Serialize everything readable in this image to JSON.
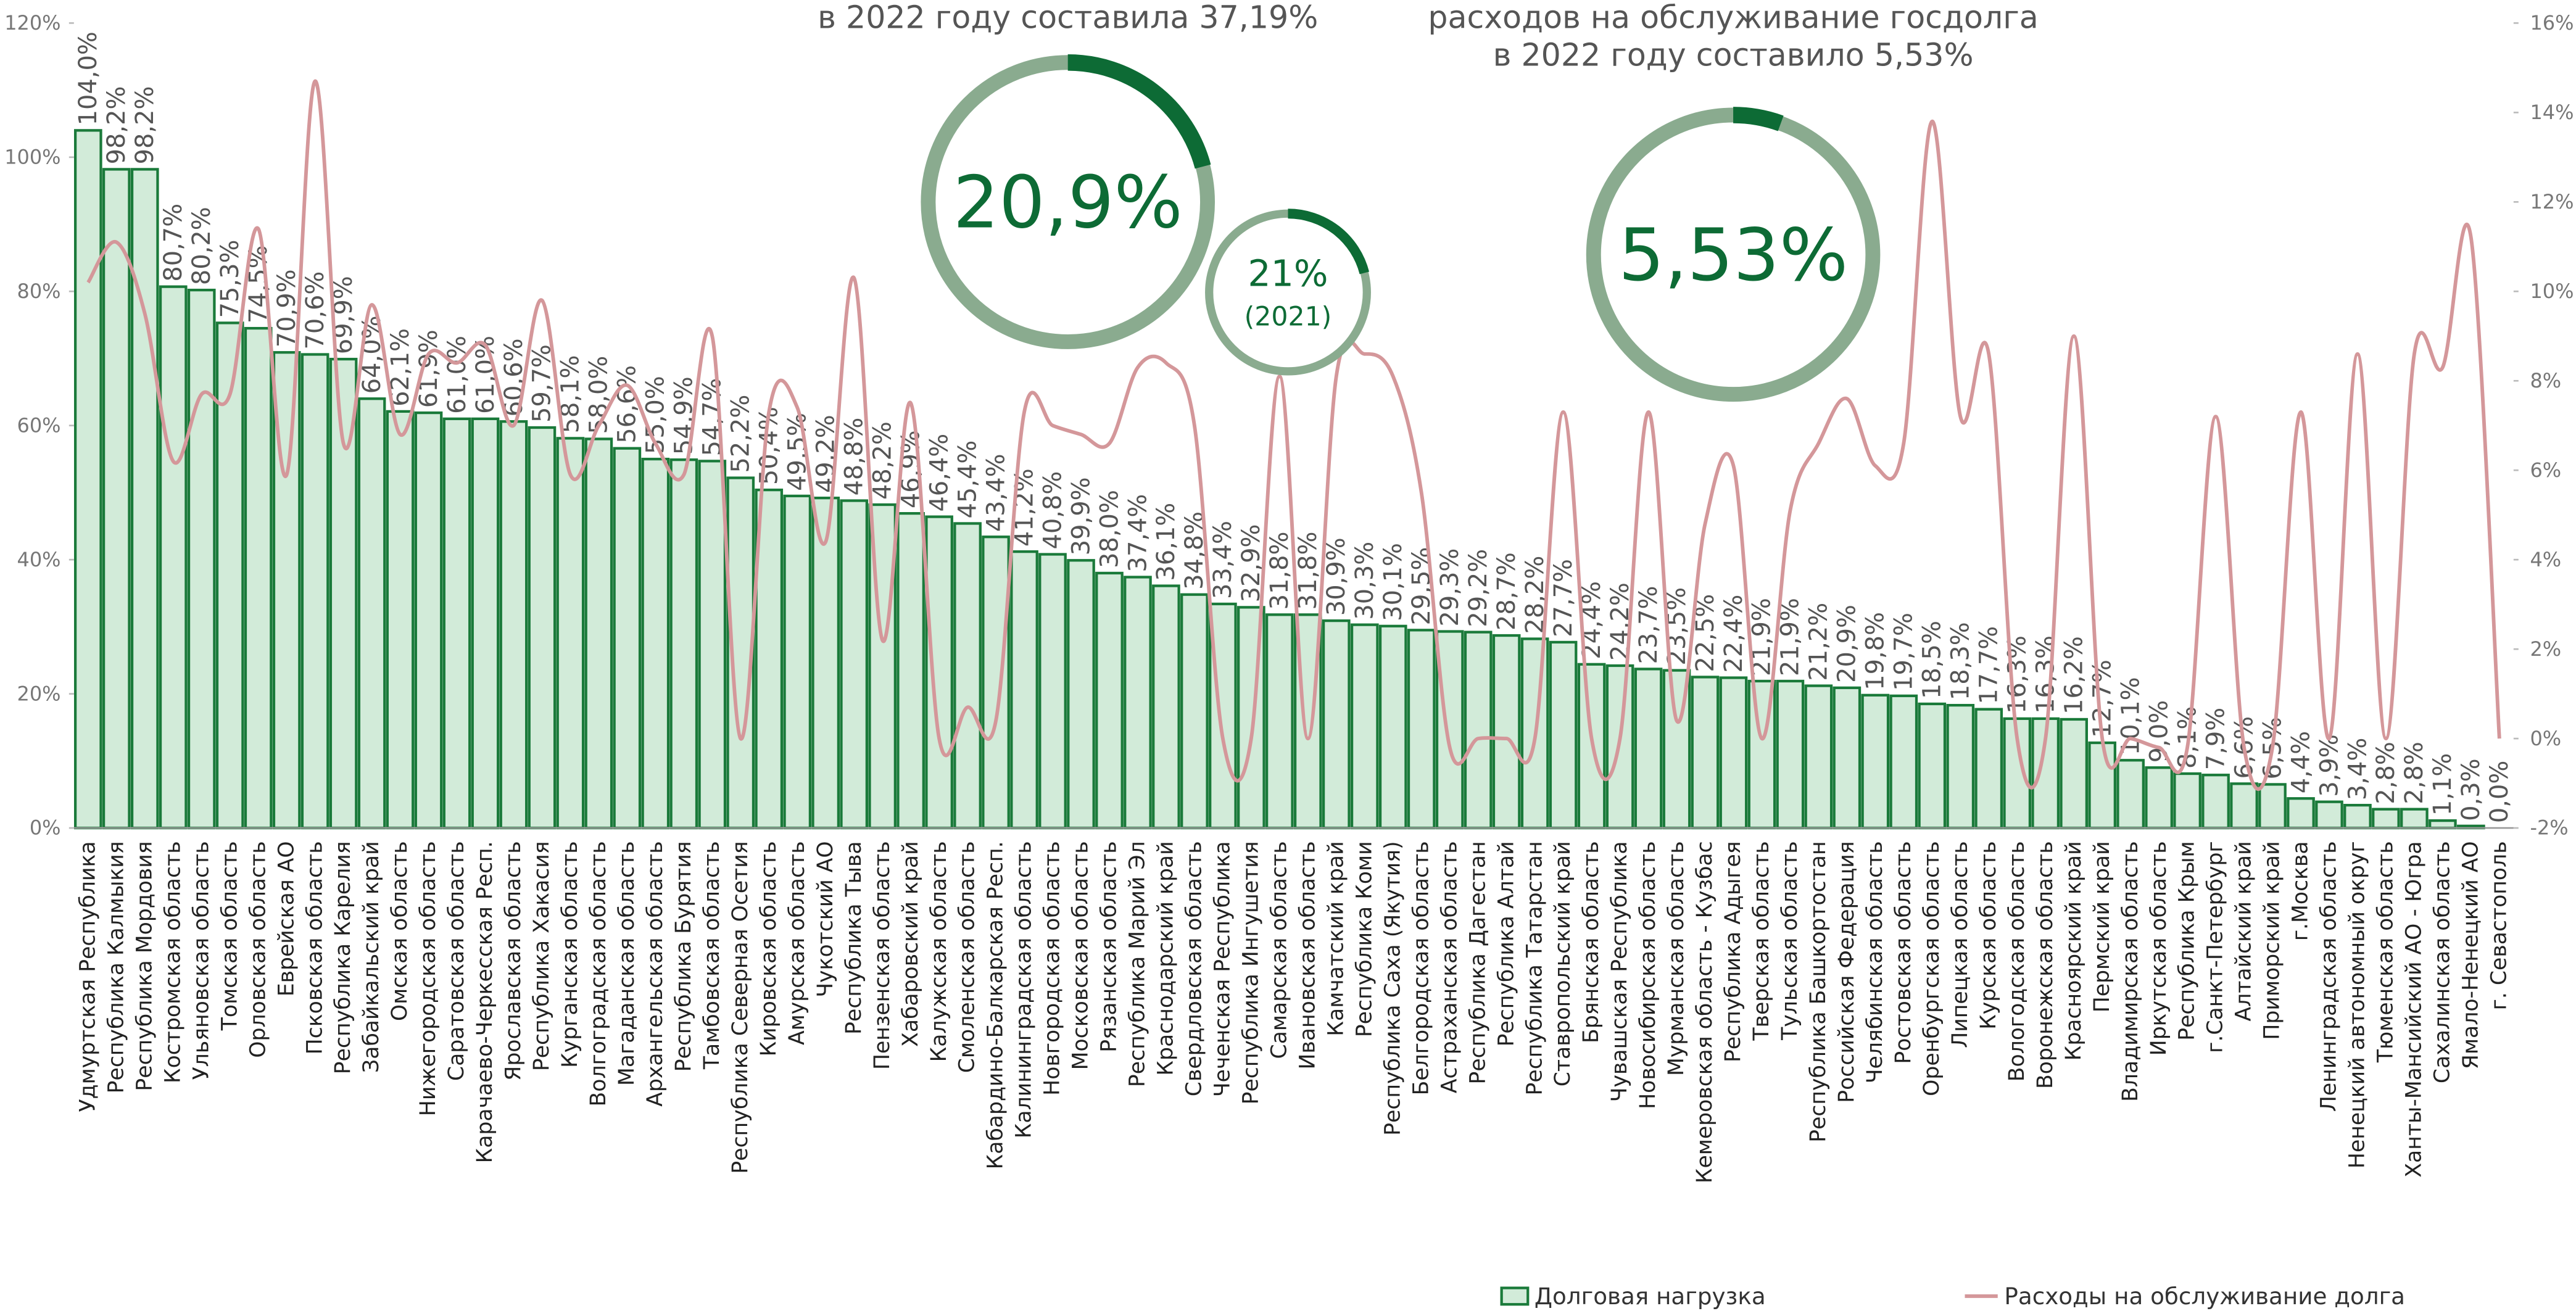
{
  "chart_data": {
    "type": "bar",
    "annotations": [
      "в 2022 году составила 37,19%",
      "расходов на обслуживание госдолга",
      "в 2022 году составило 5,53%"
    ],
    "donuts": [
      {
        "value": 20.9,
        "label": "20,9%"
      },
      {
        "value": 21,
        "label": "21%",
        "note": "(2021)"
      },
      {
        "value": 5.53,
        "label": "5,53%"
      }
    ],
    "categories": [
      "Удмуртская Республика",
      "Республика Калмыкия",
      "Республика Мордовия",
      "Костромская область",
      "Ульяновская область",
      "Томская область",
      "Орловская область",
      "Еврейская АО",
      "Псковская область",
      "Республика Карелия",
      "Забайкальский край",
      "Омская область",
      "Нижегородская область",
      "Саратовская область",
      "Карачаево-Черкесская Респ.",
      "Ярославская область",
      "Республика Хакасия",
      "Курганская область",
      "Волгоградская область",
      "Магаданская область",
      "Архангельская область",
      "Республика Бурятия",
      "Тамбовская область",
      "Республика Северная Осетия",
      "Кировская область",
      "Амурская область",
      "Чукотский АО",
      "Республика Тыва",
      "Пензенская область",
      "Хабаровский край",
      "Калужская область",
      "Смоленская область",
      "Кабардино-Балкарская Респ.",
      "Калининградская область",
      "Новгородская область",
      "Московская область",
      "Рязанская область",
      "Республика Марий Эл",
      "Краснодарский край",
      "Свердловская область",
      "Чеченская Республика",
      "Республика Ингушетия",
      "Самарская область",
      "Ивановская область",
      "Камчатский край",
      "Республика Коми",
      "Республика Саха (Якутия)",
      "Белгородская область",
      "Астраханская область",
      "Республика Дагестан",
      "Республика Алтай",
      "Республика Татарстан",
      "Ставропольский край",
      "Брянская область",
      "Чувашская Республика",
      "Новосибирская область",
      "Мурманская область",
      "Кемеровская область - Кузбас",
      "Республика Адыгея",
      "Тверская область",
      "Тульская область",
      "Республика Башкортостан",
      "Российская Федерация",
      "Челябинская область",
      "Ростовская область",
      "Оренбургская область",
      "Липецкая область",
      "Курская область",
      "Вологодская область",
      "Воронежская область",
      "Красноярский край",
      "Пермский край",
      "Владимирская область",
      "Иркутская область",
      "Республика Крым",
      "г.Санкт-Петербург",
      "Алтайский край",
      "Приморский край",
      "г.Москва",
      "Ленинградская область",
      "Ненецкий автономный округ",
      "Тюменская область",
      "Ханты-Мансийский АО - Югра",
      "Сахалинская область",
      "Ямало-Ненецкий АО",
      "г. Севастополь"
    ],
    "series": [
      {
        "name": "Долговая нагрузка",
        "type": "bar",
        "color": "#d2ebd9",
        "stroke": "#1a7a3a",
        "values": [
          104.0,
          98.2,
          98.2,
          80.7,
          80.2,
          75.3,
          74.5,
          70.9,
          70.6,
          69.9,
          64.0,
          62.1,
          61.9,
          61.0,
          61.0,
          60.6,
          59.7,
          58.1,
          58.0,
          56.6,
          55.0,
          54.9,
          54.7,
          52.2,
          50.4,
          49.5,
          49.2,
          48.8,
          48.2,
          46.9,
          46.4,
          45.4,
          43.4,
          41.2,
          40.8,
          39.9,
          38.0,
          37.4,
          36.1,
          34.8,
          33.4,
          32.9,
          31.8,
          31.8,
          30.9,
          30.3,
          30.1,
          29.5,
          29.3,
          29.2,
          28.7,
          28.2,
          27.7,
          24.4,
          24.2,
          23.7,
          23.5,
          22.5,
          22.4,
          21.9,
          21.9,
          21.2,
          20.9,
          19.8,
          19.7,
          18.5,
          18.3,
          17.7,
          16.3,
          16.3,
          16.2,
          12.7,
          10.1,
          9.0,
          8.1,
          7.9,
          6.6,
          6.5,
          4.4,
          3.9,
          3.4,
          2.8,
          2.8,
          1.1,
          0.3,
          0.0
        ],
        "value_labels": [
          "104,0%",
          "98,2%",
          "98,2%",
          "80,7%",
          "80,2%",
          "75,3%",
          "74,5%",
          "70,9%",
          "70,6%",
          "69,9%",
          "64,0%",
          "62,1%",
          "61,9%",
          "61,0%",
          "61,0%",
          "60,6%",
          "59,7%",
          "58,1%",
          "58,0%",
          "56,6%",
          "55,0%",
          "54,9%",
          "54,7%",
          "52,2%",
          "50,4%",
          "49,5%",
          "49,2%",
          "48,8%",
          "48,2%",
          "46,9%",
          "46,4%",
          "45,4%",
          "43,4%",
          "41,2%",
          "40,8%",
          "39,9%",
          "38,0%",
          "37,4%",
          "36,1%",
          "34,8%",
          "33,4%",
          "32,9%",
          "31,8%",
          "31,8%",
          "30,9%",
          "30,3%",
          "30,1%",
          "29,5%",
          "29,3%",
          "29,2%",
          "28,7%",
          "28,2%",
          "27,7%",
          "24,4%",
          "24,2%",
          "23,7%",
          "23,5%",
          "22,5%",
          "22,4%",
          "21,9%",
          "21,9%",
          "21,2%",
          "20,9%",
          "19,8%",
          "19,7%",
          "18,5%",
          "18,3%",
          "17,7%",
          "16,3%",
          "16,3%",
          "16,2%",
          "12,7%",
          "10,1%",
          "9,0%",
          "8,1%",
          "7,9%",
          "6,6%",
          "6,5%",
          "4,4%",
          "3,9%",
          "3,4%",
          "2,8%",
          "2,8%",
          "1,1%",
          "0,3%",
          "0,0%"
        ]
      },
      {
        "name": "Расходы на обслуживание долга",
        "type": "line",
        "axis": "y2",
        "color": "#d4979a",
        "values": [
          10.2,
          11.1,
          9.5,
          6.2,
          7.7,
          7.7,
          11.4,
          5.9,
          14.7,
          6.6,
          9.7,
          6.8,
          8.6,
          8.4,
          8.8,
          7.0,
          9.8,
          5.9,
          7.0,
          7.9,
          6.6,
          5.9,
          9.0,
          0.0,
          7.3,
          7.4,
          4.4,
          10.3,
          2.2,
          7.5,
          0.0,
          0.7,
          0.4,
          7.3,
          7.0,
          6.8,
          6.6,
          8.3,
          8.4,
          7.0,
          0.0,
          0.0,
          8.1,
          0.0,
          8.1,
          8.6,
          8.1,
          5.5,
          -0.2,
          0.0,
          0.0,
          0.0,
          7.3,
          0.0,
          0.0,
          7.3,
          0.4,
          4.8,
          6.1,
          0.0,
          5.1,
          6.6,
          7.6,
          6.1,
          6.6,
          13.8,
          7.2,
          8.6,
          0.0,
          0.0,
          9.0,
          0.0,
          0.0,
          -0.2,
          -0.2,
          7.2,
          -0.2,
          -0.2,
          7.3,
          0.0,
          8.6,
          0.0,
          8.6,
          8.3,
          11.2,
          0.0
        ]
      }
    ],
    "ylim": [
      0,
      120
    ],
    "yticks": [
      {
        "value": 0,
        "label": "0%"
      },
      {
        "value": 20,
        "label": "20%"
      },
      {
        "value": 40,
        "label": "40%"
      },
      {
        "value": 60,
        "label": "60%"
      },
      {
        "value": 80,
        "label": "80%"
      },
      {
        "value": 100,
        "label": "100%"
      },
      {
        "value": 120,
        "label": "120%"
      }
    ],
    "y2lim": [
      -2,
      16
    ],
    "y2ticks": [
      {
        "value": -2,
        "label": "-2%"
      },
      {
        "value": 0,
        "label": "0%"
      },
      {
        "value": 2,
        "label": "2%"
      },
      {
        "value": 4,
        "label": "4%"
      },
      {
        "value": 6,
        "label": "6%"
      },
      {
        "value": 8,
        "label": "8%"
      },
      {
        "value": 10,
        "label": "10%"
      },
      {
        "value": 12,
        "label": "12%"
      },
      {
        "value": 14,
        "label": "14%"
      },
      {
        "value": 16,
        "label": "16%"
      }
    ],
    "legend": "bottom"
  }
}
